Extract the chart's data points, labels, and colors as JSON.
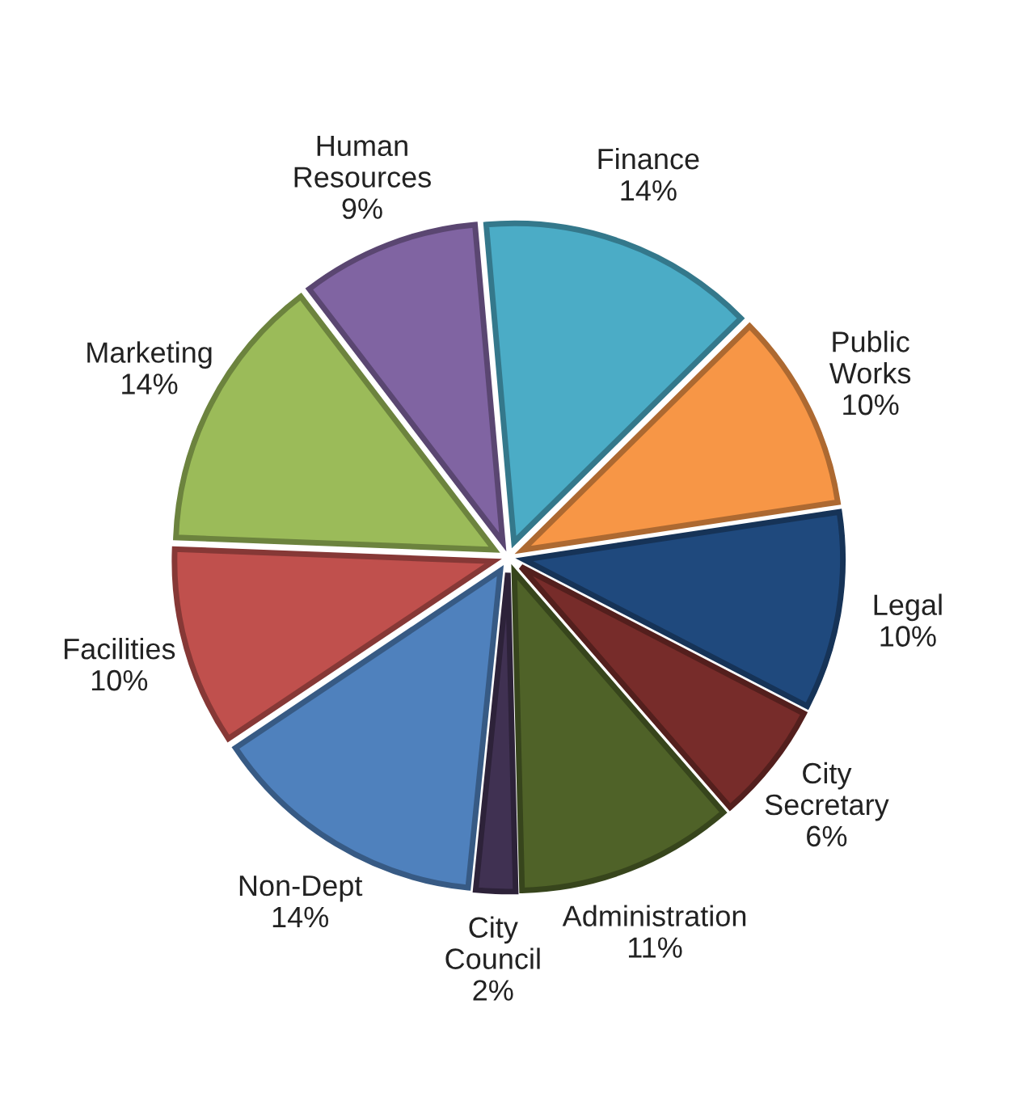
{
  "chart_data": {
    "type": "pie",
    "categories": [
      "Finance",
      "Public\nWorks",
      "Legal",
      "City\nSecretary",
      "Administration",
      "City\nCouncil",
      "Non-Dept",
      "Facilities",
      "Marketing",
      "Human\nResources"
    ],
    "values": [
      14,
      10,
      10,
      6,
      11,
      2,
      14,
      10,
      14,
      9
    ],
    "value_labels": [
      "14%",
      "10%",
      "10%",
      "6%",
      "11%",
      "2%",
      "14%",
      "10%",
      "14%",
      "9%"
    ],
    "colors": [
      "#4bacc6",
      "#f79646",
      "#1f497d",
      "#772c2a",
      "#4f6228",
      "#403152",
      "#4f81bd",
      "#c0504d",
      "#9bbb59",
      "#8064a2"
    ],
    "legend": false
  }
}
